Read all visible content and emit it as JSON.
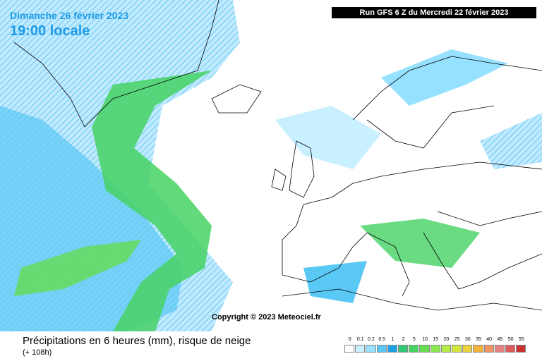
{
  "header": {
    "date": "Dimanche 26 février 2023",
    "time": "19:00 locale",
    "run": "Run GFS 6 Z du Mercredi 22 février 2023"
  },
  "copyright": "Copyright © 2023 Meteociel.fr",
  "footer": {
    "title": "Précipitations en 6 heures (mm), risque de neige",
    "lead": "(+ 108h)"
  },
  "legend": {
    "levels": [
      0,
      0.1,
      0.2,
      0.5,
      1,
      2,
      5,
      10,
      15,
      20,
      25,
      30,
      35,
      40,
      45,
      50,
      55
    ],
    "colors": [
      "#ffffff",
      "#c8f0ff",
      "#96e1ff",
      "#5ac8f5",
      "#1ea0e6",
      "#32c878",
      "#46d264",
      "#64dc50",
      "#8ce650",
      "#b4eb46",
      "#d2e63c",
      "#ebd23c",
      "#f0b43c",
      "#f09664",
      "#e68282",
      "#dc5a5a",
      "#c83232"
    ]
  }
}
